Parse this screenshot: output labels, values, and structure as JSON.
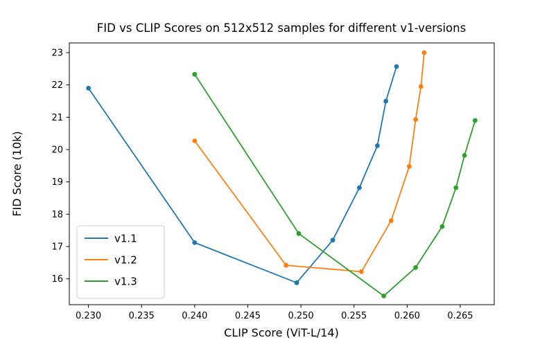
{
  "chart_data": {
    "type": "line",
    "title": "FID vs CLIP Scores on 512x512 samples for different v1-versions",
    "xlabel": "CLIP Score (ViT-L/14)",
    "ylabel": "FID Score (10k)",
    "xlim": [
      0.2282,
      0.2682
    ],
    "ylim": [
      15.2,
      23.3
    ],
    "xticks": [
      0.23,
      0.235,
      0.24,
      0.245,
      0.25,
      0.255,
      0.26,
      0.265
    ],
    "yticks": [
      16,
      17,
      18,
      19,
      20,
      21,
      22,
      23
    ],
    "x_tick_decimals": 3,
    "grid": false,
    "legend_position": "lower-left",
    "marker": "circle",
    "series": [
      {
        "name": "v1.1",
        "color": "#1f77b4",
        "points": [
          [
            0.23,
            21.9
          ],
          [
            0.24,
            17.12
          ],
          [
            0.2496,
            15.88
          ],
          [
            0.253,
            17.2
          ],
          [
            0.2555,
            18.82
          ],
          [
            0.2572,
            20.12
          ],
          [
            0.258,
            21.5
          ],
          [
            0.259,
            22.57
          ]
        ]
      },
      {
        "name": "v1.2",
        "color": "#ff7f0e",
        "points": [
          [
            0.24,
            20.27
          ],
          [
            0.2486,
            16.42
          ],
          [
            0.2557,
            16.22
          ],
          [
            0.2585,
            17.8
          ],
          [
            0.2602,
            19.48
          ],
          [
            0.2608,
            20.93
          ],
          [
            0.2613,
            21.95
          ],
          [
            0.2616,
            23.0
          ]
        ]
      },
      {
        "name": "v1.3",
        "color": "#2ca02c",
        "points": [
          [
            0.24,
            22.33
          ],
          [
            0.2498,
            17.4
          ],
          [
            0.2578,
            15.47
          ],
          [
            0.2608,
            16.35
          ],
          [
            0.2633,
            17.62
          ],
          [
            0.2646,
            18.82
          ],
          [
            0.2654,
            19.82
          ],
          [
            0.2664,
            20.9
          ]
        ]
      }
    ]
  }
}
